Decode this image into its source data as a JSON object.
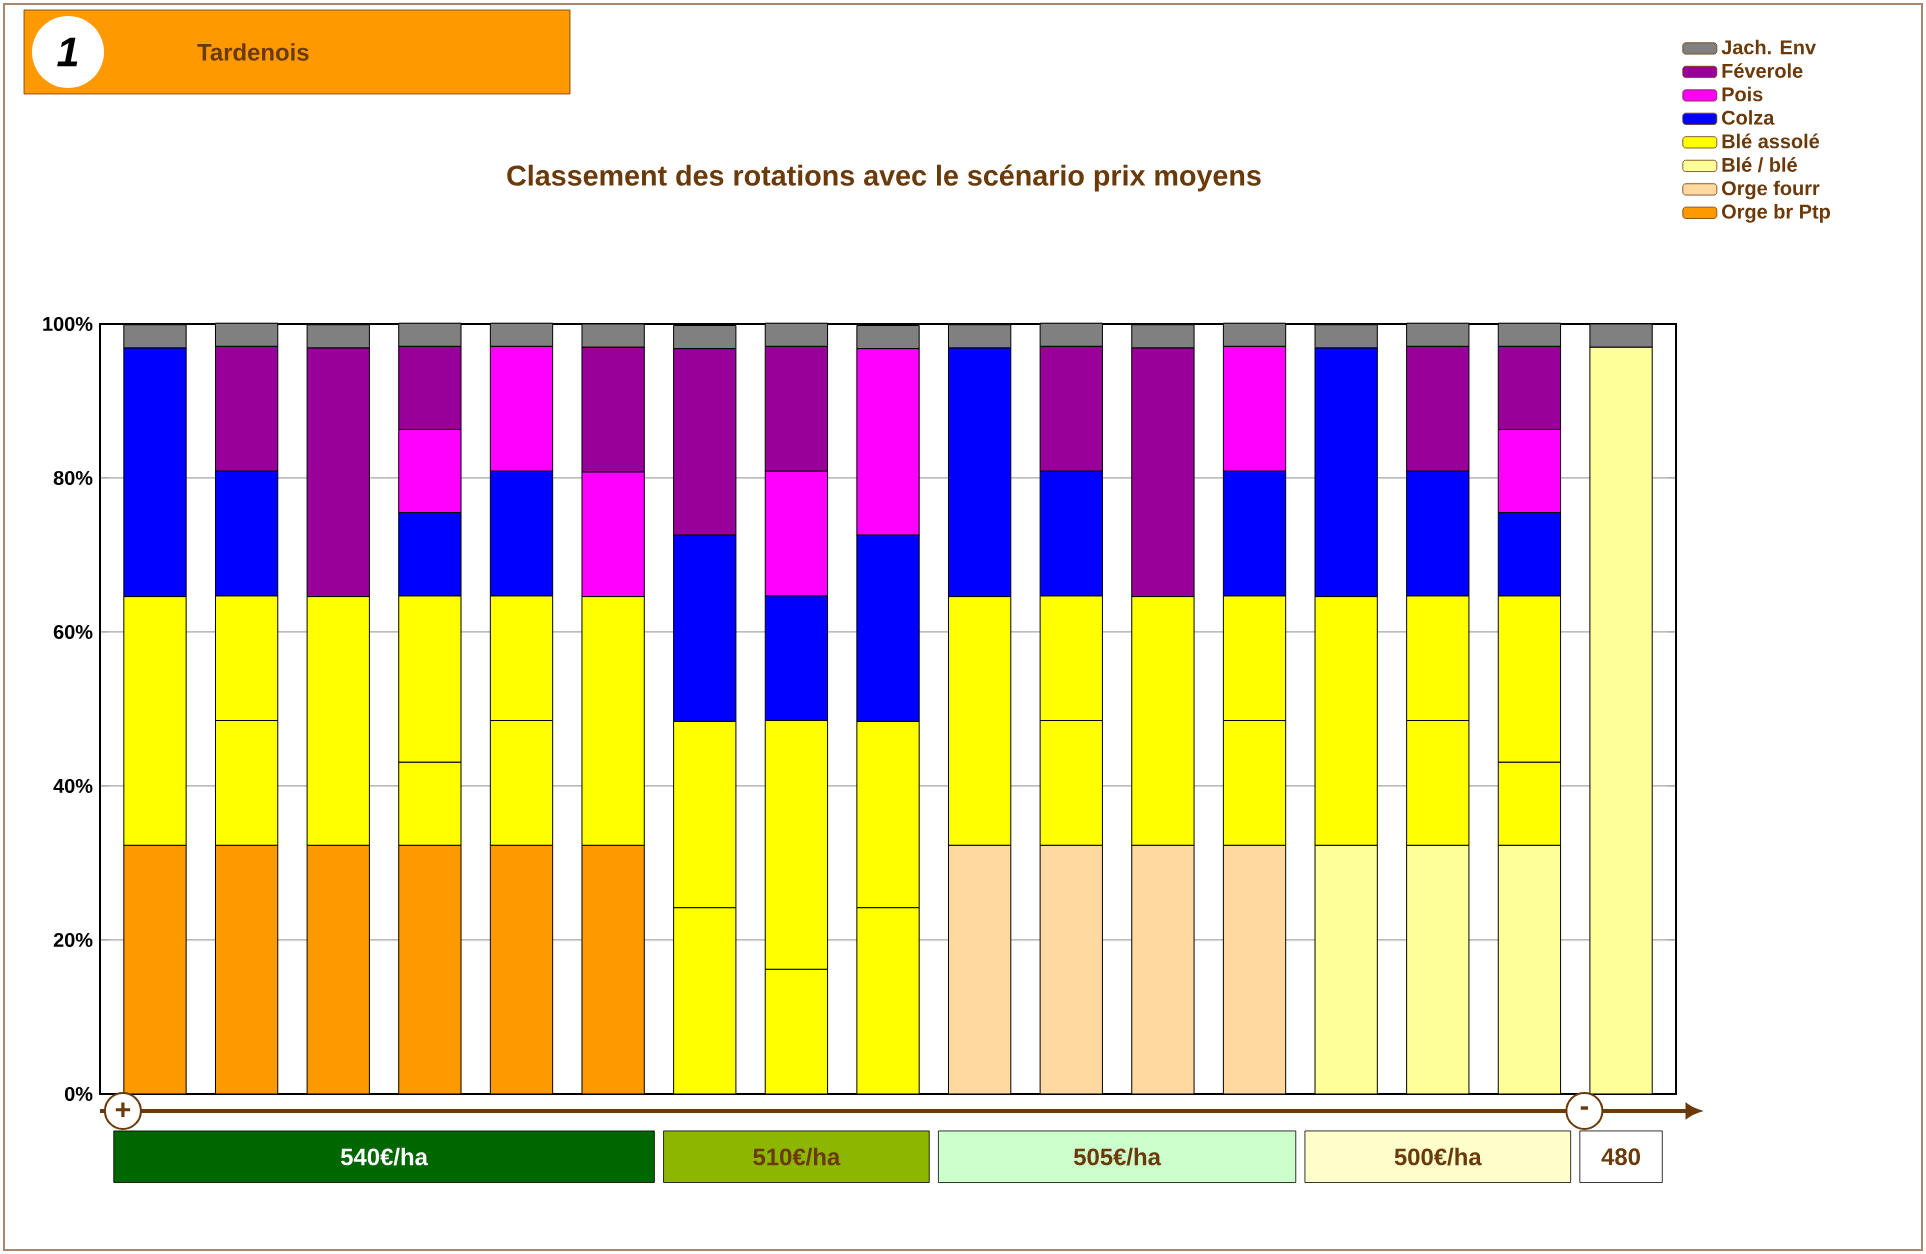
{
  "chart_data": {
    "type": "bar",
    "stacked": true,
    "title": "Classement des rotations avec le scénario prix moyens",
    "categories": [
      null,
      null,
      null,
      null,
      null,
      null,
      null,
      null,
      null,
      null,
      null,
      null,
      null,
      null,
      null,
      null,
      null
    ],
    "series": [
      {
        "name": "Orge br Ptp",
        "color": "#ff9900",
        "values": [
          32.3,
          32.3,
          32.3,
          32.3,
          32.3,
          32.3,
          null,
          null,
          null,
          null,
          null,
          null,
          null,
          null,
          null,
          null,
          null
        ]
      },
      {
        "name": "Orge fourr",
        "color": "#ffd9a0",
        "values": [
          null,
          null,
          null,
          null,
          null,
          null,
          null,
          null,
          null,
          32.3,
          32.3,
          32.3,
          32.3,
          null,
          null,
          null,
          null
        ]
      },
      {
        "name": "Blé /  blé",
        "color": "#ffff99",
        "values": [
          null,
          null,
          null,
          null,
          null,
          null,
          null,
          null,
          null,
          null,
          null,
          null,
          null,
          32.3,
          32.3,
          32.3,
          97
        ]
      },
      {
        "name": "Blé assolé",
        "color": "#ffff00",
        "values": [
          32.3,
          16.2,
          32.3,
          10.8,
          16.2,
          32.3,
          24.2,
          16.2,
          24.2,
          32.3,
          16.2,
          32.3,
          16.2,
          32.3,
          16.2,
          10.8,
          null
        ]
      },
      {
        "color": "#ffff00",
        "values": [
          null,
          16.2,
          null,
          21.6,
          16.2,
          null,
          24.2,
          32.3,
          24.2,
          null,
          16.2,
          null,
          16.2,
          null,
          16.2,
          21.6,
          null
        ]
      },
      {
        "name": "Colza",
        "color": "#0000ff",
        "values": [
          32.3,
          16.2,
          null,
          10.8,
          16.2,
          null,
          24.2,
          16.2,
          24.2,
          32.3,
          16.2,
          null,
          16.2,
          32.3,
          16.2,
          10.8,
          null
        ]
      },
      {
        "name": "Pois",
        "color": "#ff00ff",
        "values": [
          null,
          null,
          null,
          10.8,
          16.2,
          16.2,
          null,
          16.2,
          24.2,
          null,
          null,
          null,
          16.2,
          null,
          null,
          10.8,
          null
        ]
      },
      {
        "name": "Féverole",
        "color": "#990099",
        "values": [
          null,
          16.2,
          32.3,
          10.8,
          null,
          16.2,
          24.2,
          16.2,
          null,
          null,
          16.2,
          32.3,
          null,
          null,
          16.2,
          10.8,
          null
        ]
      },
      {
        "name": "Jach. Env",
        "color": "#808080",
        "values": [
          3,
          3,
          3,
          3,
          3,
          3,
          3,
          3,
          3,
          3,
          3,
          3,
          3,
          3,
          3,
          3,
          3
        ]
      }
    ],
    "ylim": [
      0,
      100
    ],
    "yticks": [
      {
        "value": 0,
        "label": "0%"
      },
      {
        "value": 20,
        "label": "20%"
      },
      {
        "value": 40,
        "label": "40%"
      },
      {
        "value": 60,
        "label": "60%"
      },
      {
        "value": 80,
        "label": "80%"
      },
      {
        "value": 100,
        "label": "100%"
      }
    ],
    "grid": "y",
    "legend": "top right",
    "tick_labels": "y",
    "annotations": [
      "1",
      "Tardenois",
      "+",
      "-",
      "540€/ha",
      "510€/ha",
      "505€/ha",
      "500€/ha",
      "480"
    ]
  }
}
